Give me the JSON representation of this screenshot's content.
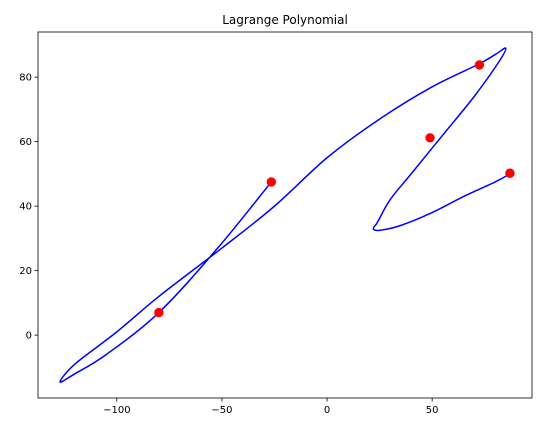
{
  "chart_data": {
    "type": "line",
    "title": "Lagrange Polynomial",
    "xlabel": "",
    "ylabel": "",
    "xlim": [
      -137.5,
      97.5
    ],
    "ylim": [
      -19.5,
      94.0
    ],
    "x_ticks": [
      -100,
      -50,
      0,
      50
    ],
    "x_tick_labels": [
      "−100",
      "−50",
      "0",
      "50"
    ],
    "y_ticks": [
      0,
      20,
      40,
      60,
      80
    ],
    "y_tick_labels": [
      "0",
      "20",
      "40",
      "60",
      "80"
    ],
    "grid": false,
    "legend": "none",
    "series": [
      {
        "kind": "curve",
        "color": "#0000ff",
        "x": [
          -26.5,
          -52,
          -80,
          -105,
          -120,
          -127,
          -120,
          -100,
          -80,
          -50,
          -25,
          0,
          25,
          50,
          72,
          80,
          85,
          82,
          70,
          55,
          40,
          30,
          24,
          22,
          25,
          35,
          50,
          65,
          80,
          87
        ],
        "y": [
          47.5,
          27,
          7,
          -6,
          -12,
          -14.5,
          -9,
          1,
          12,
          27,
          40,
          55,
          67,
          77,
          84,
          87,
          89,
          85,
          74,
          62,
          50,
          42,
          35,
          33,
          32.5,
          34,
          38,
          43,
          47.5,
          50
        ]
      },
      {
        "kind": "points",
        "color": "#ff0000",
        "x": [
          -26.5,
          -80,
          49,
          72.5,
          87
        ],
        "y": [
          47.5,
          7,
          61.2,
          83.8,
          50.2
        ]
      }
    ]
  }
}
